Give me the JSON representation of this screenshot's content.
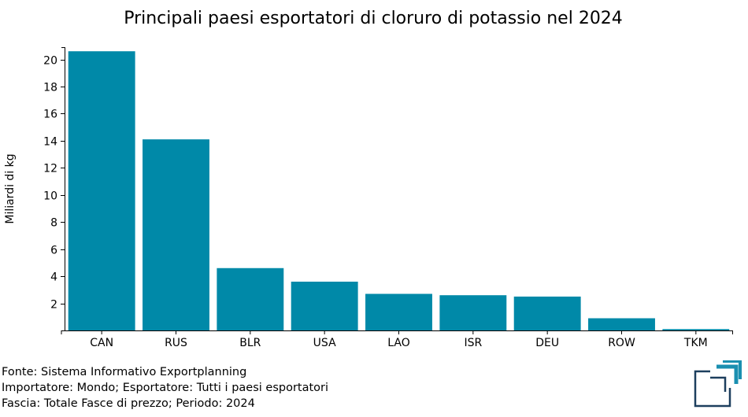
{
  "chart_data": {
    "type": "bar",
    "title": "Principali paesi esportatori di cloruro di potassio nel 2024",
    "ylabel": "Miliardi di kg",
    "xlabel": "",
    "categories": [
      "CAN",
      "RUS",
      "BLR",
      "USA",
      "LAO",
      "ISR",
      "DEU",
      "ROW",
      "TKM"
    ],
    "values": [
      20.6,
      14.1,
      4.6,
      3.6,
      2.7,
      2.6,
      2.5,
      0.9,
      0.1
    ],
    "ylim": [
      0,
      20.9
    ],
    "yticks": [
      2,
      4,
      6,
      8,
      10,
      12,
      14,
      16,
      18,
      20
    ],
    "bar_color": "#0089a8",
    "grid": false,
    "legend": "none"
  },
  "footer": {
    "source": "Fonte: Sistema Informativo Exportplanning",
    "filter": "Importatore: Mondo; Esportatore: Tutti i paesi esportatori",
    "range": "Fascia: Totale Fasce di prezzo; Periodo: 2024"
  },
  "colors": {
    "logo": "#1a8fb0",
    "logo_dark": "#1d3f5e"
  }
}
